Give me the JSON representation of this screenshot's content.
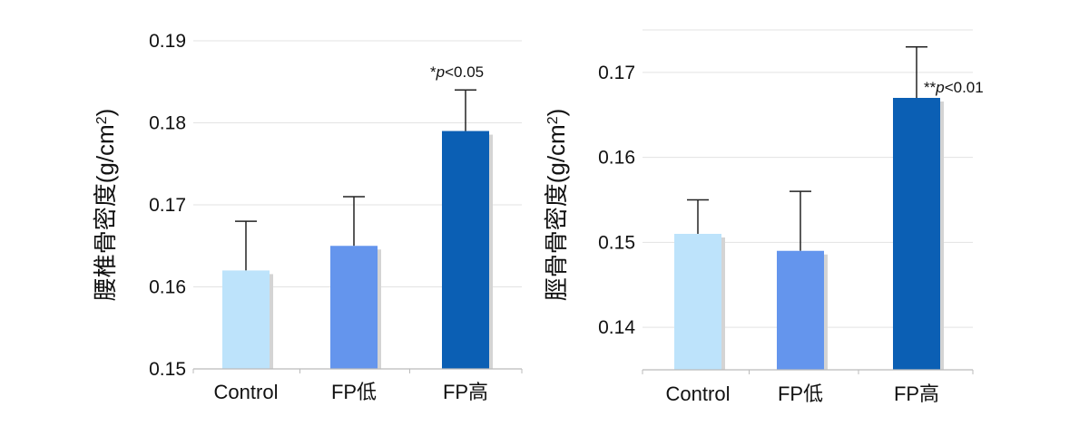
{
  "colors": {
    "control": "#bde3fb",
    "fp_low": "#6495ed",
    "fp_high": "#0b5fb4",
    "shadow": "#d4d4d4",
    "grid": "#e3e3e3",
    "axis": "#bbbbbb",
    "error_bar": "#222222"
  },
  "chart_data": [
    {
      "type": "bar",
      "ylabel_main": "腰椎骨密度",
      "ylabel_unit": "(g/cm",
      "ylabel_sup": "2",
      "ylabel_close": ")",
      "ylim": [
        0.15,
        0.19
      ],
      "yticks": [
        0.15,
        0.16,
        0.17,
        0.18,
        0.19
      ],
      "ytick_labels": [
        "0.15",
        "0.16",
        "0.17",
        "0.18",
        "0.19"
      ],
      "grid": true,
      "categories": [
        "Control",
        "FP低",
        "FP高"
      ],
      "values": [
        0.162,
        0.165,
        0.179
      ],
      "error_upper": [
        0.168,
        0.171,
        0.184
      ],
      "annotation": {
        "category_index": 2,
        "stars": "*",
        "p": "p",
        "rest": "<0.05"
      }
    },
    {
      "type": "bar",
      "ylabel_main": "脛骨骨密度",
      "ylabel_unit": "(g/cm",
      "ylabel_sup": "2",
      "ylabel_close": ")",
      "ylim": [
        0.135,
        0.175
      ],
      "yticks": [
        0.14,
        0.15,
        0.16,
        0.17
      ],
      "ytick_labels": [
        "0.14",
        "0.15",
        "0.16",
        "0.17"
      ],
      "grid": true,
      "categories": [
        "Control",
        "FP低",
        "FP高"
      ],
      "values": [
        0.151,
        0.149,
        0.167
      ],
      "error_upper": [
        0.155,
        0.156,
        0.173
      ],
      "annotation": {
        "category_index": 2,
        "stars": "**",
        "p": "p",
        "rest": "<0.01"
      }
    }
  ]
}
